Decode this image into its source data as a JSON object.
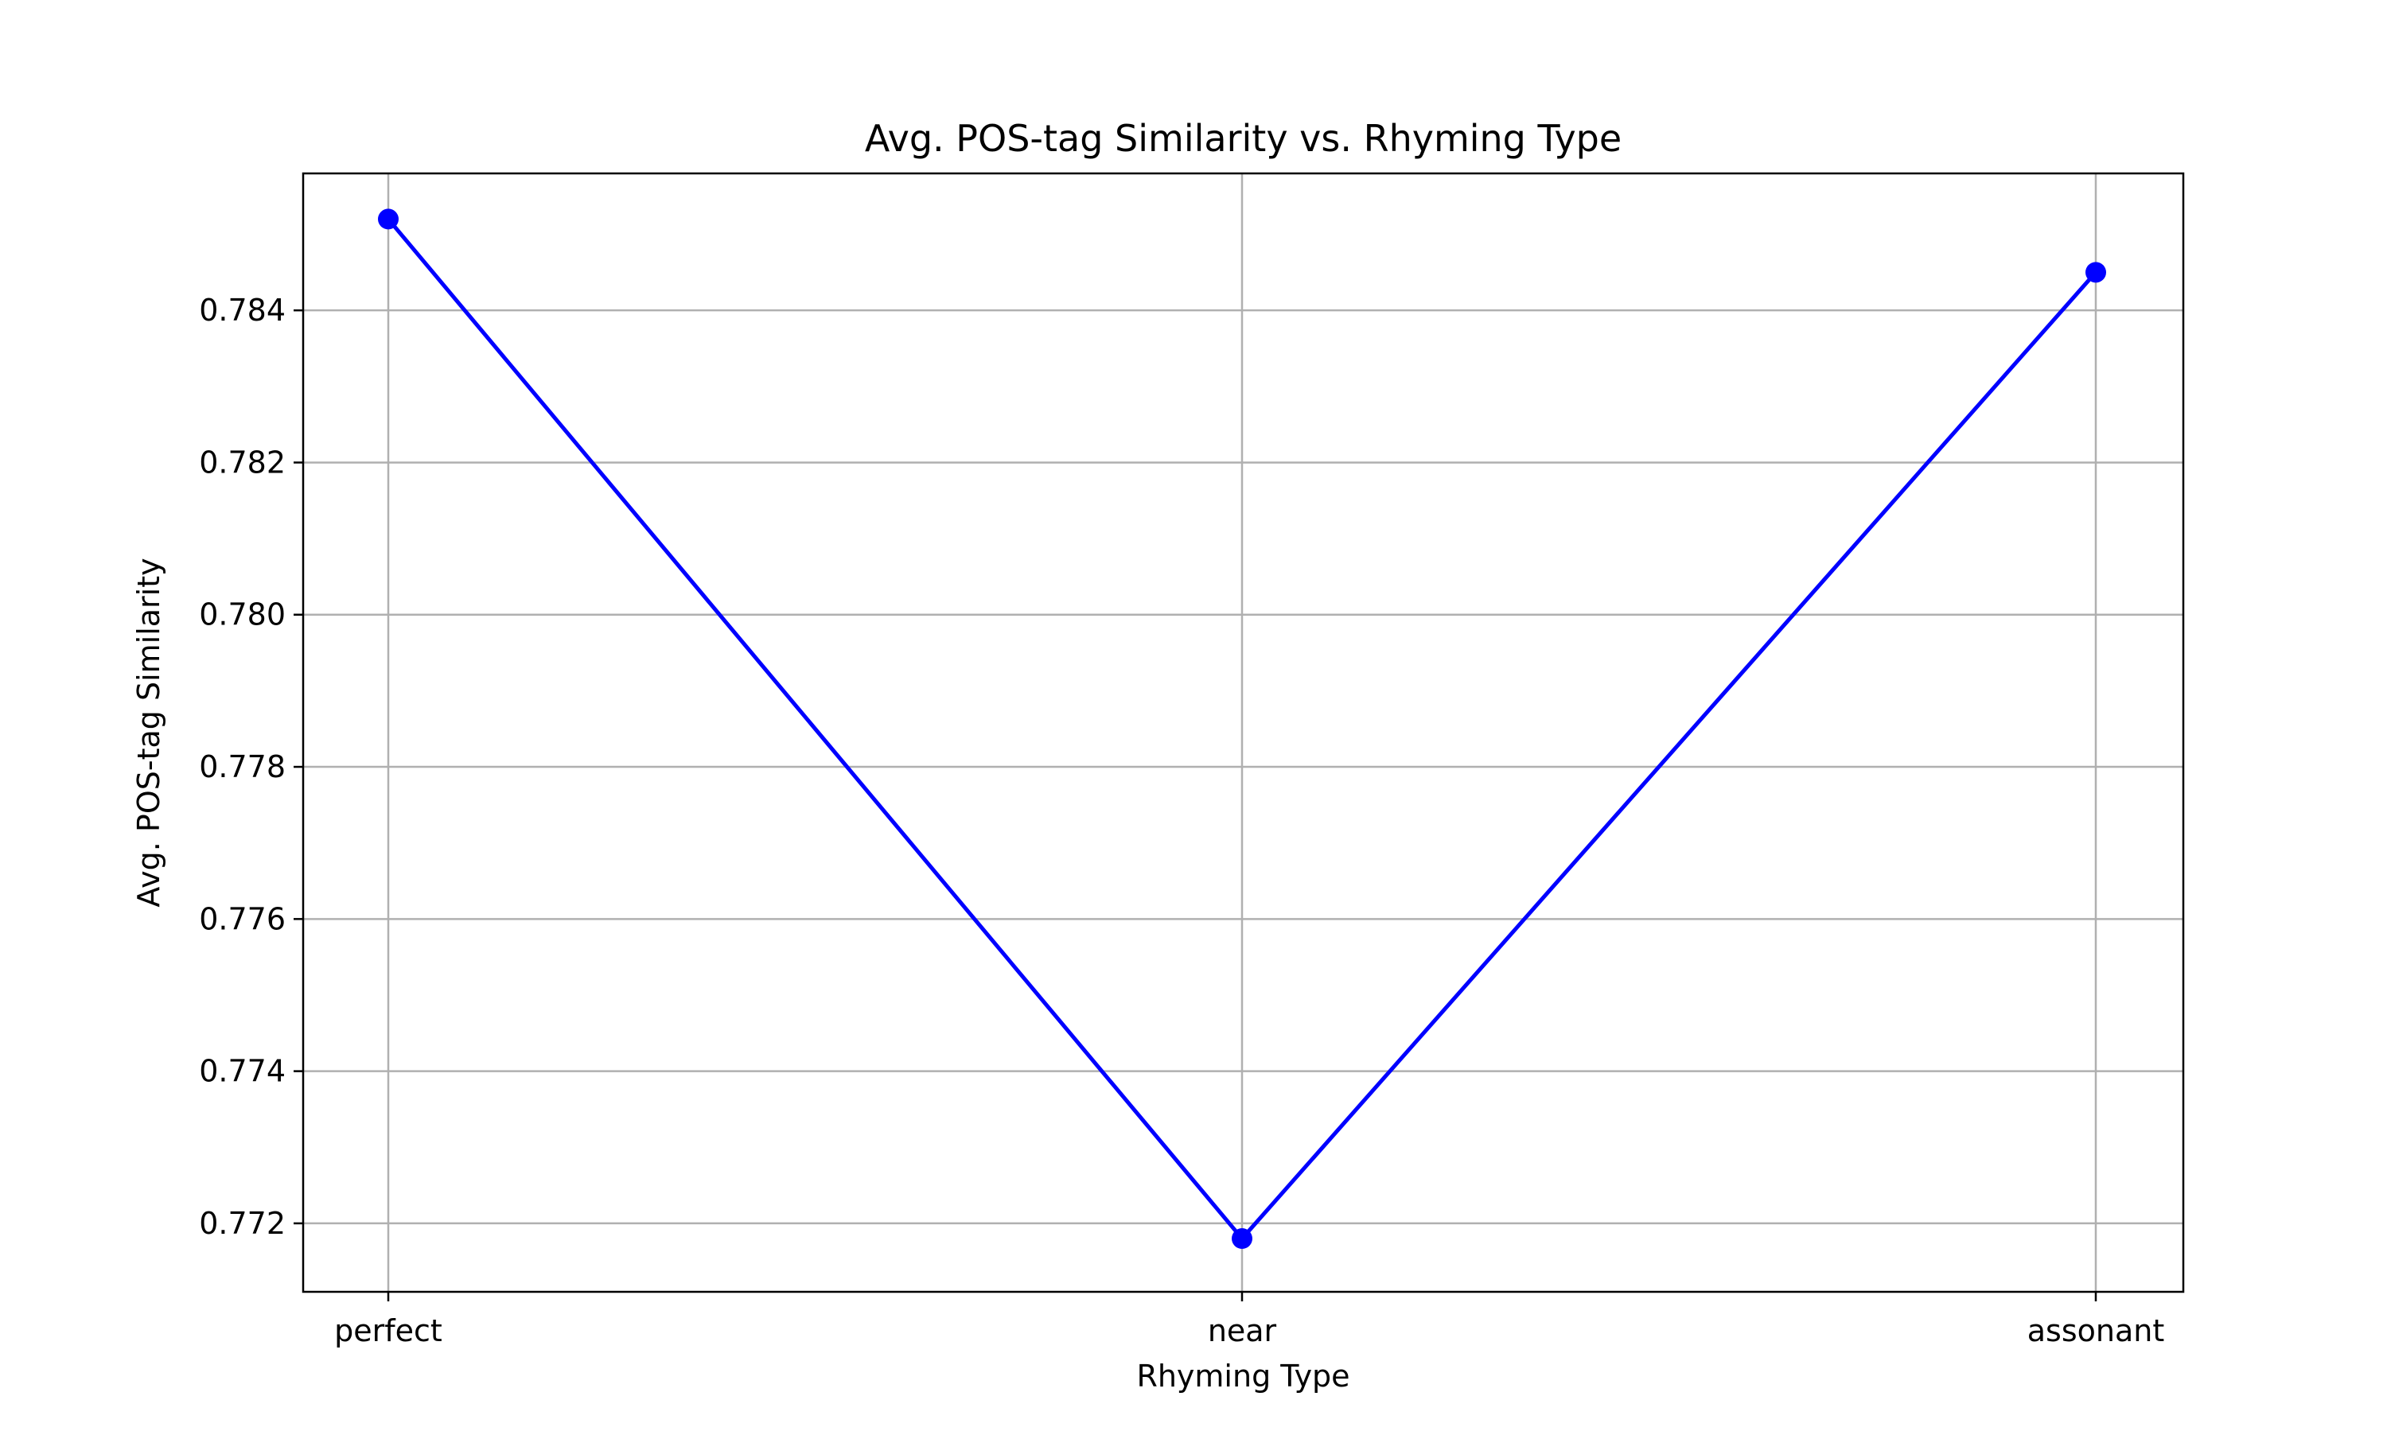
{
  "chart_data": {
    "type": "line",
    "title": "Avg. POS-tag Similarity vs. Rhyming Type",
    "xlabel": "Rhyming Type",
    "ylabel": "Avg. POS-tag Similarity",
    "categories": [
      "perfect",
      "near",
      "assonant"
    ],
    "series": [
      {
        "values": [
          0.7852,
          0.7718,
          0.7845
        ],
        "color": "#0000ff",
        "marker": "circle"
      }
    ],
    "ylim": [
      0.7711,
      0.7858
    ],
    "yticks": [
      0.772,
      0.774,
      0.776,
      0.778,
      0.78,
      0.782,
      0.784
    ],
    "ytick_labels": [
      "0.772",
      "0.774",
      "0.776",
      "0.778",
      "0.780",
      "0.782",
      "0.784"
    ],
    "grid": true,
    "grid_color": "#b0b0b0",
    "axis_color": "#000000",
    "legend": "none"
  }
}
